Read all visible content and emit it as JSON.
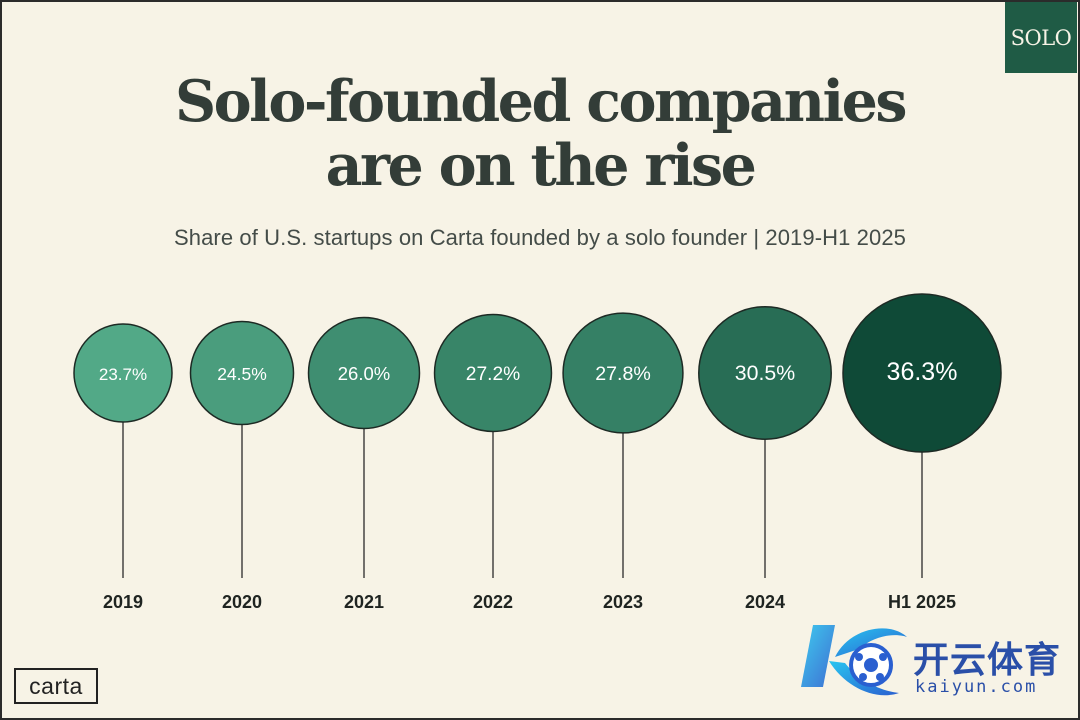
{
  "badge": "SOLO",
  "title_lines": [
    "Solo-founded companies",
    "are on the rise"
  ],
  "subtitle": "Share of U.S. startups on Carta founded by a solo founder | 2019-H1 2025",
  "logo": "carta",
  "watermark": {
    "cn": "开云体育",
    "en": "kaiyun.com"
  },
  "colors": {
    "background": "#f7f3e6",
    "bubble_light": "#52a987",
    "bubble_dark": "#0f4a37",
    "badge": "#1f5b45"
  },
  "chart_data": {
    "type": "bubble",
    "categories": [
      "2019",
      "2020",
      "2021",
      "2022",
      "2023",
      "2024",
      "H1 2025"
    ],
    "values": [
      23.7,
      24.5,
      26.0,
      27.2,
      27.8,
      30.5,
      36.3
    ],
    "value_labels": [
      "23.7%",
      "24.5%",
      "26.0%",
      "27.2%",
      "27.8%",
      "30.5%",
      "36.3%"
    ],
    "title": "Solo-founded companies are on the rise",
    "subtitle": "Share of U.S. startups on Carta founded by a solo founder | 2019-H1 2025",
    "unit": "%"
  }
}
